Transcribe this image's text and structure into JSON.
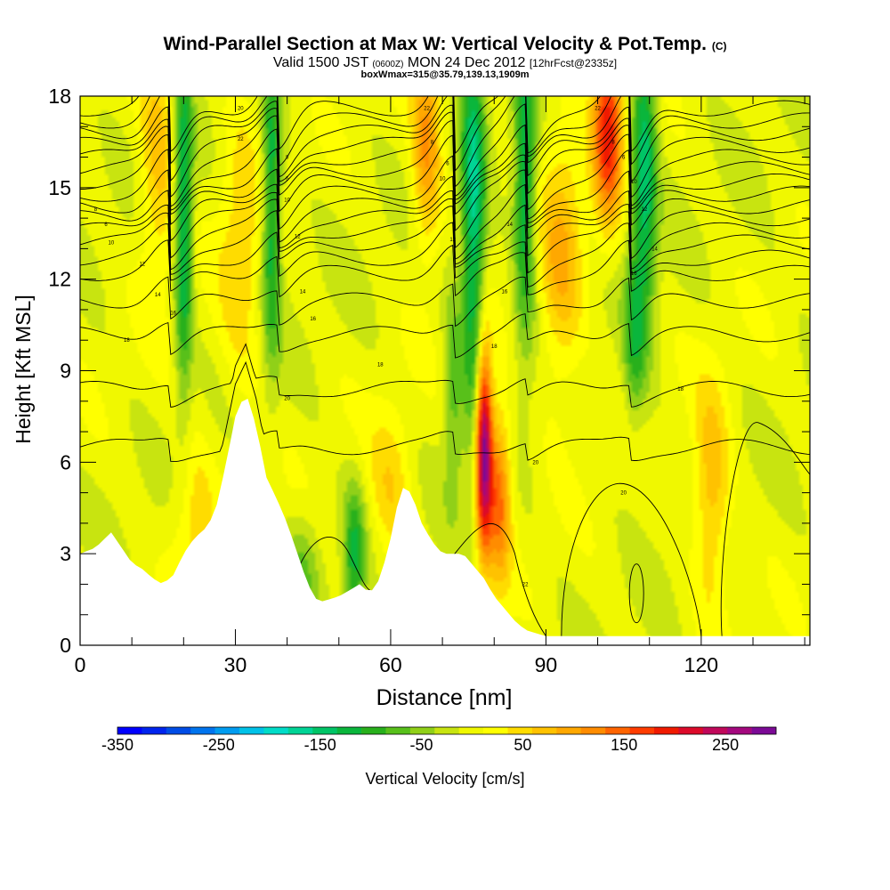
{
  "title": {
    "main": "Wind-Parallel Section at Max W: Vertical Velocity & Pot.Temp.",
    "copyright": "(C)",
    "valid_prefix": "Valid 1500 JST",
    "valid_utc": "(0600Z)",
    "valid_date": "MON 24 Dec 2012",
    "forecast": "[12hrFcst@2335z]",
    "subtitle": "boxWmax=315@35.79,139.13,1909m"
  },
  "chart_data": {
    "type": "heatmap",
    "xlabel": "Distance [nm]",
    "ylabel": "Height [Kft MSL]",
    "xlim": [
      0,
      141
    ],
    "ylim": [
      0,
      18
    ],
    "x_ticks": [
      "0",
      "30",
      "60",
      "90",
      "120"
    ],
    "y_ticks": [
      "0",
      "3",
      "6",
      "9",
      "12",
      "15",
      "18"
    ],
    "x_tick_values": [
      0,
      30,
      60,
      90,
      120
    ],
    "y_tick_values": [
      0,
      3,
      6,
      9,
      12,
      15,
      18
    ],
    "terrain": {
      "x": [
        0,
        3,
        6,
        8,
        10,
        12,
        14,
        16,
        18,
        20,
        22,
        24,
        26,
        28,
        30,
        32,
        34,
        36,
        38,
        40,
        42,
        44,
        46,
        48,
        50,
        52,
        54,
        56,
        58,
        60,
        62,
        64,
        66,
        68,
        70,
        72,
        74,
        76,
        78,
        80,
        82,
        84,
        86,
        88,
        90,
        95,
        100,
        110,
        120,
        130,
        141
      ],
      "y": [
        3.0,
        3.2,
        3.7,
        3.2,
        2.7,
        2.5,
        2.2,
        2.0,
        2.3,
        3.0,
        3.5,
        3.8,
        4.3,
        5.8,
        7.5,
        8.3,
        7.2,
        5.5,
        4.8,
        4.0,
        3.0,
        2.0,
        1.4,
        1.5,
        1.6,
        1.8,
        2.0,
        1.7,
        2.2,
        3.5,
        5.2,
        5.0,
        4.0,
        3.4,
        3.0,
        3.0,
        3.0,
        2.6,
        2.2,
        1.6,
        1.2,
        0.8,
        0.5,
        0.4,
        0.3,
        0.3,
        0.3,
        0.3,
        0.3,
        0.3,
        0.3
      ]
    },
    "vertical_velocity_features": [
      {
        "x": 78,
        "y": 6.5,
        "value": 315,
        "sx": 1.1,
        "sy": 2.3,
        "label": "max updraft"
      },
      {
        "x": 81,
        "y": 5.0,
        "value": 150,
        "sx": 1.6,
        "sy": 2.0
      },
      {
        "x": 102,
        "y": 17.0,
        "value": 200,
        "sx": 2.0,
        "sy": 2.2
      },
      {
        "x": 67,
        "y": 16.5,
        "value": 120,
        "sx": 2.0,
        "sy": 2.5
      },
      {
        "x": 15,
        "y": 16.0,
        "value": 80,
        "sx": 2.5,
        "sy": 3.0
      },
      {
        "x": 93,
        "y": 12.5,
        "value": 90,
        "sx": 3.0,
        "sy": 3.0
      },
      {
        "x": 122,
        "y": 5.0,
        "value": 90,
        "sx": 2.5,
        "sy": 2.5
      },
      {
        "x": 60,
        "y": 5.0,
        "value": 60,
        "sx": 3.0,
        "sy": 2.0
      },
      {
        "x": 22,
        "y": 4.0,
        "value": 60,
        "sx": 3.0,
        "sy": 2.0
      },
      {
        "x": 31,
        "y": 13.0,
        "value": 60,
        "sx": 3.0,
        "sy": 3.5
      },
      {
        "x": 20,
        "y": 14.0,
        "value": -150,
        "sx": 1.2,
        "sy": 4.0
      },
      {
        "x": 37,
        "y": 14.5,
        "value": -140,
        "sx": 1.3,
        "sy": 3.5
      },
      {
        "x": 76,
        "y": 14.0,
        "value": -160,
        "sx": 1.6,
        "sy": 5.0
      },
      {
        "x": 86,
        "y": 15.0,
        "value": -140,
        "sx": 1.5,
        "sy": 3.5
      },
      {
        "x": 109,
        "y": 15.5,
        "value": -150,
        "sx": 1.7,
        "sy": 3.5
      },
      {
        "x": 107,
        "y": 10.0,
        "value": -80,
        "sx": 1.5,
        "sy": 2.0
      },
      {
        "x": 53,
        "y": 3.0,
        "value": -110,
        "sx": 1.5,
        "sy": 1.6
      },
      {
        "x": 43,
        "y": 2.6,
        "value": -60,
        "sx": 2.5,
        "sy": 1.2
      },
      {
        "x": 72,
        "y": 8.5,
        "value": -70,
        "sx": 1.3,
        "sy": 2.5
      }
    ],
    "potential_temperature": {
      "contour_levels_kft": [
        6.5,
        8.4,
        10.2,
        11.3,
        12.2,
        12.7,
        13.2,
        13.6,
        14.0,
        14.4,
        14.8,
        15.2,
        15.6,
        16.0,
        16.4,
        16.8,
        17.2,
        17.6
      ],
      "wave_centers_nm": [
        17,
        38,
        72,
        86,
        106
      ],
      "contour_labels": [
        "8",
        "6",
        "10",
        "12",
        "14",
        "16",
        "18",
        "20",
        "22"
      ]
    },
    "colorbar": {
      "label": "Vertical Velocity [cm/s]",
      "tick_labels": [
        "-350",
        "-250",
        "-150",
        "-50",
        "50",
        "150",
        "250"
      ],
      "tick_values": [
        -350,
        -250,
        -150,
        -50,
        50,
        150,
        250
      ],
      "min": -350,
      "max": 300,
      "step": 25,
      "colors": [
        "#0000ff",
        "#0024ee",
        "#004ce6",
        "#0074ee",
        "#009cf0",
        "#00c2e8",
        "#00dcc8",
        "#00d496",
        "#00c466",
        "#0ab63c",
        "#28b01c",
        "#58c01a",
        "#90d018",
        "#c8e410",
        "#f0f800",
        "#ffff00",
        "#ffdc00",
        "#ffc200",
        "#ffa800",
        "#ff8c00",
        "#ff6400",
        "#ff3c00",
        "#f01a00",
        "#dc0a2a",
        "#c0085a",
        "#a4087e",
        "#7c0a96"
      ]
    }
  }
}
